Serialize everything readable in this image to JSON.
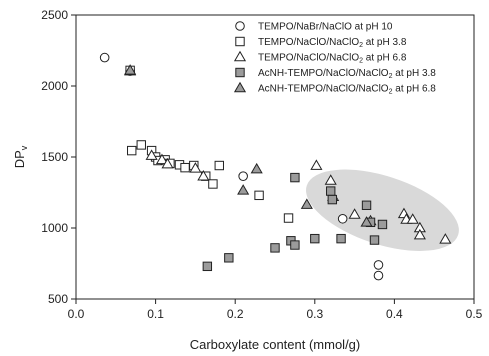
{
  "chart_data": {
    "type": "scatter",
    "xlabel": "Carboxylate content (mmol/g)",
    "ylabel_main": "DP",
    "ylabel_sub": "v",
    "xlim": [
      0.0,
      0.5
    ],
    "ylim": [
      500,
      2500
    ],
    "xticks": [
      0.0,
      0.1,
      0.2,
      0.3,
      0.4,
      0.5
    ],
    "yticks": [
      500,
      1000,
      1500,
      2000,
      2500
    ],
    "xtick_labels": [
      "0.0",
      "0.1",
      "0.2",
      "0.3",
      "0.4",
      "0.5"
    ],
    "ytick_labels": [
      "500",
      "1000",
      "1500",
      "2000",
      "2500"
    ],
    "legend_position": "top-right",
    "highlight_ellipse": {
      "center": [
        0.385,
        1125
      ],
      "semi_axis_x": 0.1,
      "semi_axis_y": 240,
      "rotation_deg": 18,
      "color": "#d9d9d9"
    },
    "series": [
      {
        "name": "TEMPO/NaBr/NaClO at pH 10",
        "label_main": "TEMPO/NaBr/NaClO at pH 10",
        "label_sub": "",
        "label_tail": "",
        "marker": "circle",
        "fill": "#ffffff",
        "points": [
          [
            0.036,
            2200
          ],
          [
            0.068,
            2105
          ],
          [
            0.21,
            1365
          ],
          [
            0.335,
            1065
          ],
          [
            0.38,
            740
          ],
          [
            0.38,
            665
          ]
        ]
      },
      {
        "name": "TEMPO/NaClO/NaClO2 at pH 3.8",
        "label_main": "TEMPO/NaClO/NaClO",
        "label_sub": "2",
        "label_tail": " at pH 3.8",
        "marker": "square",
        "fill": "#ffffff",
        "points": [
          [
            0.068,
            2110
          ],
          [
            0.07,
            1545
          ],
          [
            0.082,
            1585
          ],
          [
            0.095,
            1545
          ],
          [
            0.1,
            1500
          ],
          [
            0.103,
            1475
          ],
          [
            0.112,
            1480
          ],
          [
            0.118,
            1455
          ],
          [
            0.13,
            1445
          ],
          [
            0.137,
            1425
          ],
          [
            0.148,
            1440
          ],
          [
            0.163,
            1365
          ],
          [
            0.172,
            1310
          ],
          [
            0.18,
            1440
          ],
          [
            0.23,
            1230
          ],
          [
            0.267,
            1070
          ]
        ]
      },
      {
        "name": "TEMPO/NaClO/NaClO2 at pH 6.8",
        "label_main": "TEMPO/NaClO/NaClO",
        "label_sub": "2",
        "label_tail": " at pH 6.8",
        "marker": "triangle",
        "fill": "#ffffff",
        "points": [
          [
            0.068,
            2105
          ],
          [
            0.095,
            1510
          ],
          [
            0.108,
            1480
          ],
          [
            0.115,
            1450
          ],
          [
            0.15,
            1420
          ],
          [
            0.16,
            1365
          ],
          [
            0.302,
            1440
          ],
          [
            0.32,
            1335
          ],
          [
            0.323,
            1220
          ],
          [
            0.35,
            1095
          ],
          [
            0.37,
            1050
          ],
          [
            0.412,
            1100
          ],
          [
            0.415,
            1060
          ],
          [
            0.423,
            1060
          ],
          [
            0.432,
            1000
          ],
          [
            0.432,
            950
          ],
          [
            0.464,
            920
          ]
        ]
      },
      {
        "name": "AcNH-TEMPO/NaClO/NaClO2 at pH 3.8",
        "label_main": "AcNH-TEMPO/NaClO/NaClO",
        "label_sub": "2",
        "label_tail": " at pH 3.8",
        "marker": "square",
        "fill": "#9b9b9b",
        "points": [
          [
            0.165,
            730
          ],
          [
            0.192,
            790
          ],
          [
            0.25,
            860
          ],
          [
            0.27,
            910
          ],
          [
            0.275,
            880
          ],
          [
            0.275,
            1355
          ],
          [
            0.3,
            925
          ],
          [
            0.32,
            1260
          ],
          [
            0.322,
            1200
          ],
          [
            0.333,
            925
          ],
          [
            0.365,
            1160
          ],
          [
            0.37,
            1040
          ],
          [
            0.375,
            915
          ],
          [
            0.385,
            1025
          ]
        ]
      },
      {
        "name": "AcNH-TEMPO/NaClO/NaClO2 at pH 6.8",
        "label_main": "AcNH-TEMPO/NaClO/NaClO",
        "label_sub": "2",
        "label_tail": " at pH 6.8",
        "marker": "triangle",
        "fill": "#9b9b9b",
        "points": [
          [
            0.068,
            2110
          ],
          [
            0.21,
            1265
          ],
          [
            0.227,
            1415
          ],
          [
            0.29,
            1165
          ],
          [
            0.365,
            1040
          ]
        ]
      }
    ]
  }
}
